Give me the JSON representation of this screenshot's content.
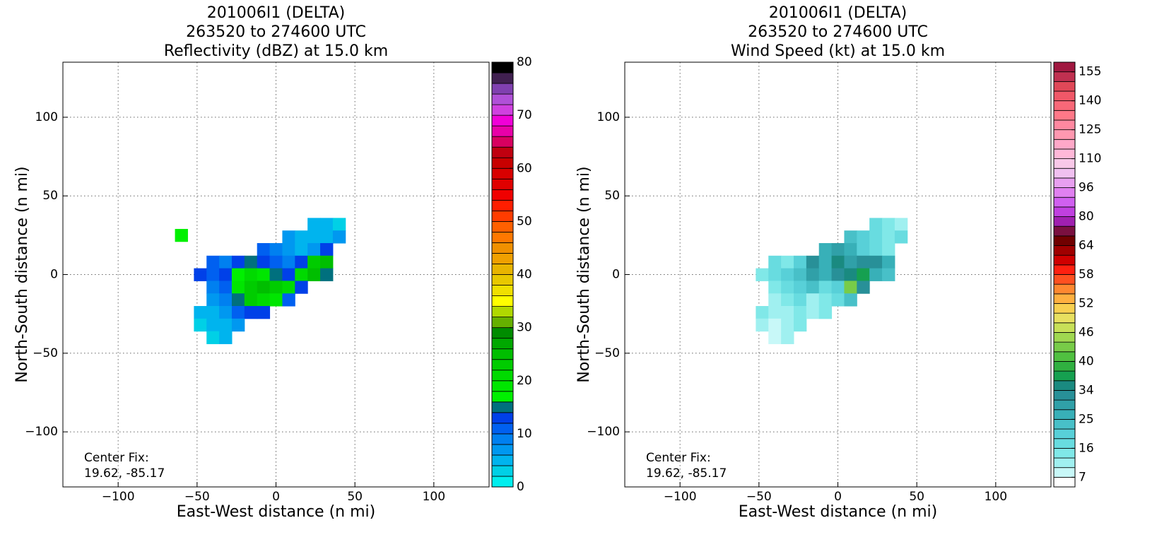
{
  "chart_data": [
    {
      "type": "heatmap",
      "title": [
        "201006I1 (DELTA)",
        "263520 to 274600 UTC",
        "Reflectivity (dBZ) at 15.0 km"
      ],
      "xlabel": "East-West distance (n mi)",
      "ylabel": "North-South distance (n mi)",
      "annotation": [
        "Center Fix:",
        "19.62, -85.17"
      ],
      "xlim": [
        -135,
        135
      ],
      "ylim": [
        -135,
        135
      ],
      "xticks": [
        {
          "value": -100,
          "label": "−100"
        },
        {
          "value": -50,
          "label": "−50"
        },
        0,
        50,
        100
      ],
      "yticks": [
        {
          "value": -100,
          "label": "−100"
        },
        {
          "value": -50,
          "label": "−50"
        },
        0,
        50,
        100
      ],
      "grid": true,
      "x": [
        24,
        32,
        40,
        8,
        16,
        24,
        32,
        40,
        -8,
        0,
        8,
        16,
        24,
        32,
        -40,
        -32,
        -24,
        -16,
        -8,
        0,
        8,
        16,
        24,
        32,
        -48,
        -40,
        -32,
        -24,
        -16,
        -8,
        0,
        8,
        16,
        24,
        32,
        -40,
        -32,
        -24,
        -16,
        -8,
        0,
        8,
        16,
        -40,
        -32,
        -24,
        -16,
        -8,
        0,
        8,
        -48,
        -40,
        -32,
        -24,
        -16,
        -8,
        -48,
        -40,
        -32,
        -24,
        -40,
        -32,
        -60
      ],
      "y": [
        32,
        32,
        32,
        24,
        24,
        24,
        24,
        24,
        16,
        16,
        16,
        16,
        16,
        16,
        8,
        8,
        8,
        8,
        8,
        8,
        8,
        8,
        8,
        8,
        0,
        0,
        0,
        0,
        0,
        0,
        0,
        0,
        0,
        0,
        0,
        -8,
        -8,
        -8,
        -8,
        -8,
        -8,
        -8,
        -8,
        -16,
        -16,
        -16,
        -16,
        -16,
        -16,
        -16,
        -24,
        -24,
        -24,
        -24,
        -24,
        -24,
        -32,
        -32,
        -32,
        -32,
        -40,
        -40,
        25
      ],
      "values": [
        4,
        4,
        2,
        6,
        4,
        4,
        4,
        6,
        10,
        8,
        6,
        4,
        6,
        12,
        10,
        8,
        12,
        14,
        12,
        10,
        8,
        12,
        22,
        24,
        12,
        10,
        12,
        16,
        20,
        18,
        14,
        12,
        20,
        24,
        14,
        8,
        10,
        18,
        22,
        24,
        22,
        20,
        12,
        6,
        8,
        14,
        22,
        20,
        18,
        10,
        4,
        4,
        6,
        10,
        12,
        12,
        2,
        4,
        4,
        6,
        2,
        4,
        16
      ],
      "colorbar": {
        "lim": [
          0,
          80
        ],
        "colors": [
          "#00eeee",
          "#00d0e6",
          "#00b4ee",
          "#0098f0",
          "#0080f0",
          "#0060f0",
          "#0040e8",
          "#00707e",
          "#00f000",
          "#00e600",
          "#00da00",
          "#00cc00",
          "#00be00",
          "#00a800",
          "#008c00",
          "#66b000",
          "#b0d800",
          "#ffff00",
          "#f0e000",
          "#e8c800",
          "#e8b400",
          "#f0a000",
          "#f09000",
          "#ff7800",
          "#ff6000",
          "#ff3c00",
          "#ff1e00",
          "#f00000",
          "#e00000",
          "#d80000",
          "#c80000",
          "#c00010",
          "#d80060",
          "#e800a8",
          "#f000d8",
          "#d040e0",
          "#b050d8",
          "#8040b0",
          "#402050",
          "#000000"
        ],
        "ticks": [
          0,
          10,
          20,
          30,
          40,
          50,
          60,
          70,
          80
        ]
      }
    },
    {
      "type": "heatmap",
      "title": [
        "201006I1 (DELTA)",
        "263520 to 274600 UTC",
        "Wind Speed (kt) at 15.0 km"
      ],
      "xlabel": "East-West distance (n mi)",
      "ylabel": "North-South distance (n mi)",
      "annotation": [
        "Center Fix:",
        "19.62, -85.17"
      ],
      "xlim": [
        -135,
        135
      ],
      "ylim": [
        -135,
        135
      ],
      "xticks": [
        {
          "value": -100,
          "label": "−100"
        },
        {
          "value": -50,
          "label": "−50"
        },
        0,
        50,
        100
      ],
      "yticks": [
        {
          "value": -100,
          "label": "−100"
        },
        {
          "value": -50,
          "label": "−50"
        },
        0,
        50,
        100
      ],
      "grid": true,
      "x": [
        24,
        32,
        40,
        8,
        16,
        24,
        32,
        40,
        -8,
        0,
        8,
        16,
        24,
        32,
        -40,
        -32,
        -24,
        -16,
        -8,
        0,
        8,
        16,
        24,
        32,
        -48,
        -40,
        -32,
        -24,
        -16,
        -8,
        0,
        8,
        16,
        24,
        32,
        -40,
        -32,
        -24,
        -16,
        -8,
        0,
        8,
        16,
        -40,
        -32,
        -24,
        -16,
        -8,
        0,
        8,
        -48,
        -40,
        -32,
        -24,
        -16,
        -8,
        -48,
        -40,
        -32,
        -24,
        -40,
        -32
      ],
      "y": [
        32,
        32,
        32,
        24,
        24,
        24,
        24,
        24,
        16,
        16,
        16,
        16,
        16,
        16,
        8,
        8,
        8,
        8,
        8,
        8,
        8,
        8,
        8,
        8,
        0,
        0,
        0,
        0,
        0,
        0,
        0,
        0,
        0,
        0,
        0,
        -8,
        -8,
        -8,
        -8,
        -8,
        -8,
        -8,
        -8,
        -16,
        -16,
        -16,
        -16,
        -16,
        -16,
        -16,
        -24,
        -24,
        -24,
        -24,
        -24,
        -24,
        -32,
        -32,
        -32,
        -32,
        -40,
        -40
      ],
      "values": [
        16,
        13,
        10,
        22,
        19,
        16,
        13,
        16,
        25,
        28,
        25,
        19,
        16,
        13,
        16,
        13,
        19,
        31,
        25,
        34,
        28,
        31,
        31,
        25,
        13,
        16,
        19,
        22,
        28,
        25,
        31,
        34,
        37,
        25,
        22,
        13,
        16,
        19,
        22,
        16,
        19,
        43,
        31,
        10,
        13,
        16,
        10,
        13,
        16,
        22,
        13,
        10,
        10,
        13,
        10,
        13,
        10,
        7,
        10,
        13,
        7,
        10
      ],
      "colorbar": {
        "boundaries": [
          4,
          7,
          10,
          13,
          16,
          19,
          22,
          25,
          28,
          31,
          34,
          36,
          38,
          40,
          42,
          44,
          46,
          48,
          50,
          52,
          54,
          56,
          58,
          60,
          62,
          64,
          69,
          75,
          80,
          85,
          91,
          96,
          101,
          105,
          110,
          115,
          120,
          125,
          130,
          135,
          140,
          145,
          150,
          155,
          160
        ],
        "colors": [
          "#ffffff",
          "#c8f8f8",
          "#a0f0f0",
          "#80e8e8",
          "#68dce0",
          "#58d0d8",
          "#48c0c8",
          "#38b0b8",
          "#30a0a8",
          "#289098",
          "#1a8a80",
          "#16a050",
          "#30b040",
          "#50c040",
          "#78cc48",
          "#a0d850",
          "#c8e058",
          "#e8e060",
          "#f8d050",
          "#ffb040",
          "#ff8830",
          "#ff5020",
          "#ff2010",
          "#d00000",
          "#a00000",
          "#700000",
          "#7a1040",
          "#a020b0",
          "#c040e0",
          "#d060f0",
          "#e080f0",
          "#e8a0f0",
          "#f0c0f0",
          "#f8c8e8",
          "#ffb8d8",
          "#ffa8c8",
          "#ff98b0",
          "#ff88a0",
          "#ff7888",
          "#f86878",
          "#f05868",
          "#e04858",
          "#c03050",
          "#a01840"
        ],
        "ticks": [
          7,
          16,
          25,
          34,
          40,
          46,
          52,
          58,
          64,
          80,
          96,
          110,
          125,
          140,
          155
        ]
      }
    }
  ]
}
